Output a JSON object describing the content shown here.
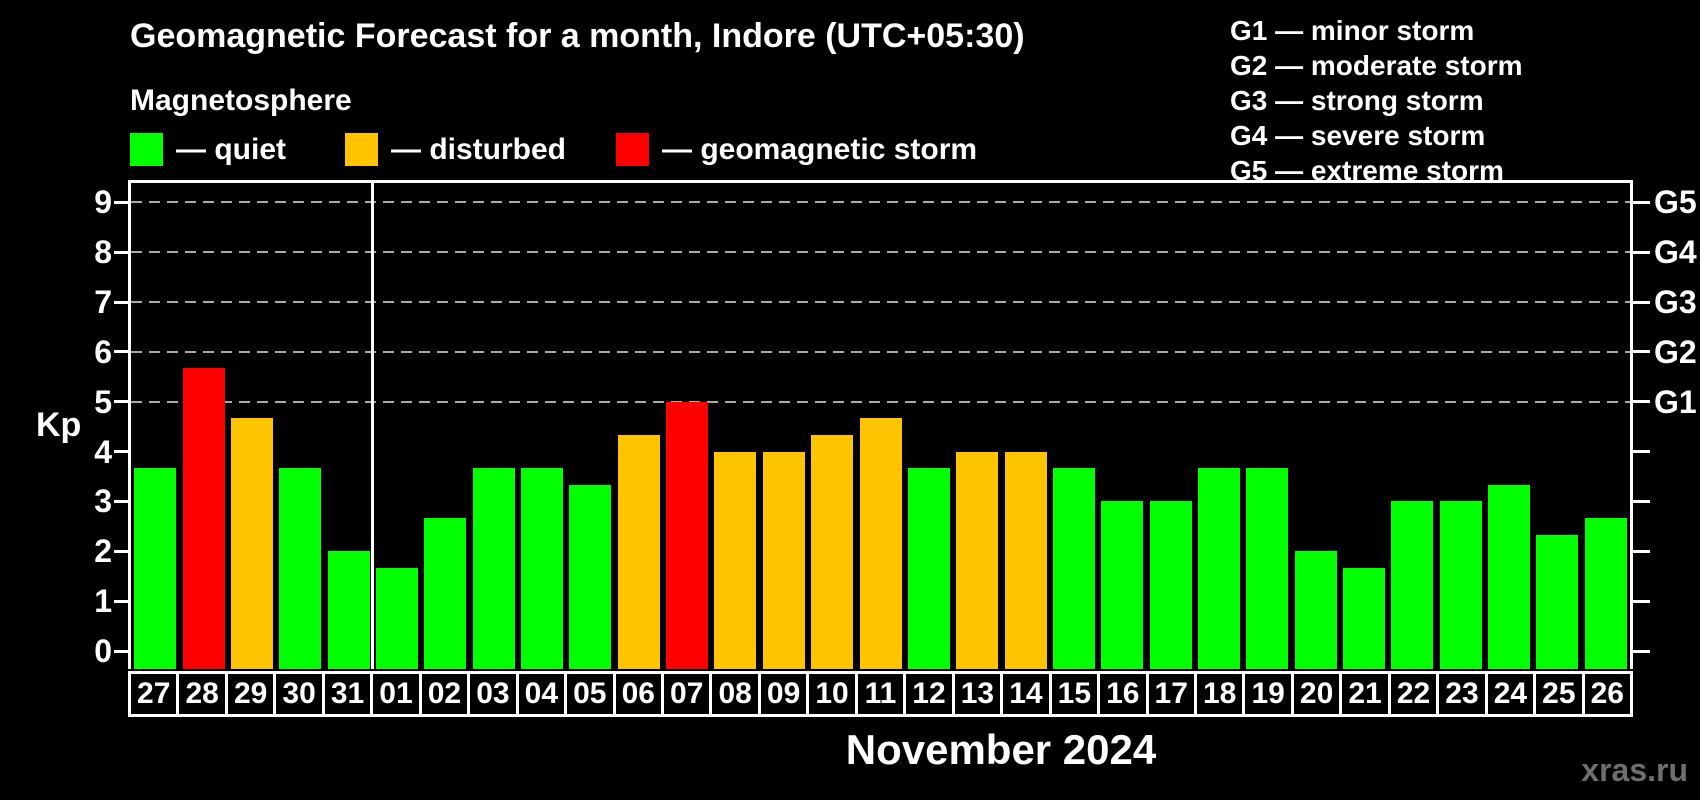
{
  "title": "Geomagnetic Forecast for a month, Indore (UTC+05:30)",
  "subtitle": "Magnetosphere",
  "status_legend": {
    "items": [
      {
        "key": "quiet",
        "label": "— quiet",
        "color": "#00ff00"
      },
      {
        "key": "disturbed",
        "label": "— disturbed",
        "color": "#ffc400"
      },
      {
        "key": "storm",
        "label": "— geomagnetic storm",
        "color": "#ff0000"
      }
    ]
  },
  "g_scale_legend": {
    "items": [
      "G1 — minor storm",
      "G2 — moderate storm",
      "G3 — strong storm",
      "G4 — severe storm",
      "G5 — extreme storm"
    ]
  },
  "watermark": "xras.ru",
  "chart_data": {
    "type": "bar",
    "title": "Geomagnetic Forecast for a month, Indore (UTC+05:30)",
    "ylabel": "Kp",
    "xlabel_month": "November 2024",
    "ylim": [
      -0.36,
      9.39
    ],
    "y_ticks": [
      0,
      1,
      2,
      3,
      4,
      5,
      6,
      7,
      8,
      9
    ],
    "gridline_levels": [
      5,
      6,
      7,
      8,
      9
    ],
    "right_axis_labels": [
      {
        "kp": 5,
        "label": "G1"
      },
      {
        "kp": 6,
        "label": "G2"
      },
      {
        "kp": 7,
        "label": "G3"
      },
      {
        "kp": 8,
        "label": "G4"
      },
      {
        "kp": 9,
        "label": "G5"
      }
    ],
    "legend_position": "top-left",
    "grid": "dashed-horizontal-on-storm-levels",
    "categories": [
      "27",
      "28",
      "29",
      "30",
      "31",
      "01",
      "02",
      "03",
      "04",
      "05",
      "06",
      "07",
      "08",
      "09",
      "10",
      "11",
      "12",
      "13",
      "14",
      "15",
      "16",
      "17",
      "18",
      "19",
      "20",
      "21",
      "22",
      "23",
      "24",
      "25",
      "26"
    ],
    "values": [
      3.67,
      5.67,
      4.67,
      3.67,
      2.0,
      1.67,
      2.67,
      3.67,
      3.67,
      3.33,
      4.33,
      5.0,
      4.0,
      4.0,
      4.33,
      4.67,
      3.67,
      4.0,
      4.0,
      3.67,
      3.0,
      3.0,
      3.67,
      3.67,
      2.0,
      1.67,
      3.0,
      3.0,
      3.33,
      2.33,
      2.67
    ],
    "statuses": [
      "quiet",
      "storm",
      "disturbed",
      "quiet",
      "quiet",
      "quiet",
      "quiet",
      "quiet",
      "quiet",
      "quiet",
      "disturbed",
      "storm",
      "disturbed",
      "disturbed",
      "disturbed",
      "disturbed",
      "quiet",
      "disturbed",
      "disturbed",
      "quiet",
      "quiet",
      "quiet",
      "quiet",
      "quiet",
      "quiet",
      "quiet",
      "quiet",
      "quiet",
      "quiet",
      "quiet",
      "quiet"
    ],
    "status_colors": {
      "quiet": "#00ff00",
      "disturbed": "#ffc400",
      "storm": "#ff0000"
    },
    "month_separator_after_index": 4,
    "month_label_span": {
      "start_index": 5,
      "end_index": 30
    }
  }
}
